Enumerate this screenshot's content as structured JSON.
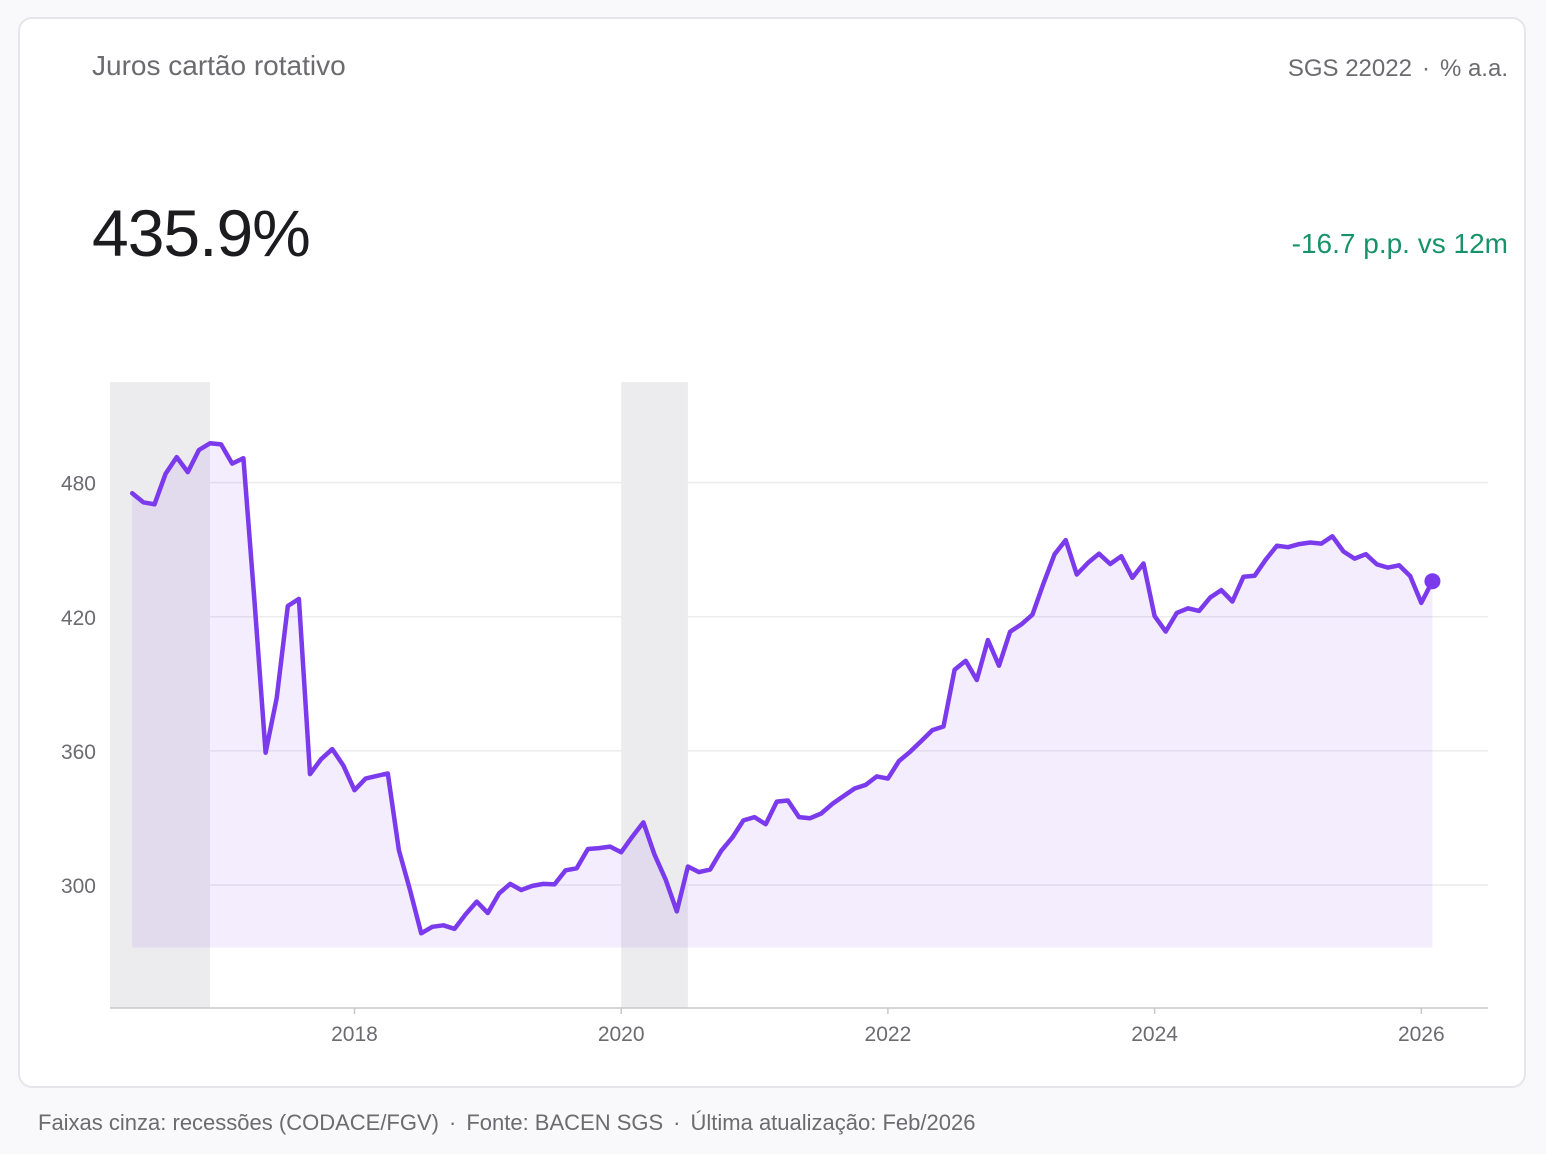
{
  "card": {
    "title": "Juros cartão rotativo",
    "series_code": "SGS 22022",
    "unit": "% a.a.",
    "current_value": "435.9%",
    "delta": "-16.7 p.p. vs 12m"
  },
  "footer": {
    "note": "Faixas cinza: recessões (CODACE/FGV)",
    "source": "Fonte: BACEN SGS",
    "updated": "Última atualização: Feb/2026"
  },
  "colors": {
    "line": "#7c3aed",
    "fill": "#f1edfc",
    "recession": "#ececee",
    "delta": "#17936a"
  },
  "chart_data": {
    "type": "line",
    "title": "Juros cartão rotativo",
    "ylabel": "% a.a.",
    "ylim": [
      245,
      525
    ],
    "xlim": [
      "2016-03",
      "2026-07"
    ],
    "y_ticks": [
      300,
      360,
      420,
      480
    ],
    "x_ticks": [
      "2018",
      "2020",
      "2022",
      "2024",
      "2026"
    ],
    "grid": true,
    "fill_baseline": 272,
    "recessions": [
      {
        "start": "2016-03",
        "end": "2016-12"
      },
      {
        "start": "2020-01",
        "end": "2020-07"
      }
    ],
    "series": [
      {
        "name": "",
        "x": [
          "2016-05",
          "2016-06",
          "2016-07",
          "2016-08",
          "2016-09",
          "2016-10",
          "2016-11",
          "2016-12",
          "2017-01",
          "2017-02",
          "2017-03",
          "2017-04",
          "2017-05",
          "2017-06",
          "2017-07",
          "2017-08",
          "2017-09",
          "2017-10",
          "2017-11",
          "2017-12",
          "2018-01",
          "2018-02",
          "2018-03",
          "2018-04",
          "2018-05",
          "2018-06",
          "2018-07",
          "2018-08",
          "2018-09",
          "2018-10",
          "2018-11",
          "2018-12",
          "2019-01",
          "2019-02",
          "2019-03",
          "2019-04",
          "2019-05",
          "2019-06",
          "2019-07",
          "2019-08",
          "2019-09",
          "2019-10",
          "2019-11",
          "2019-12",
          "2020-01",
          "2020-02",
          "2020-03",
          "2020-04",
          "2020-05",
          "2020-06",
          "2020-07",
          "2020-08",
          "2020-09",
          "2020-10",
          "2020-11",
          "2020-12",
          "2021-01",
          "2021-02",
          "2021-03",
          "2021-04",
          "2021-05",
          "2021-06",
          "2021-07",
          "2021-08",
          "2021-09",
          "2021-10",
          "2021-11",
          "2021-12",
          "2022-01",
          "2022-02",
          "2022-03",
          "2022-04",
          "2022-05",
          "2022-06",
          "2022-07",
          "2022-08",
          "2022-09",
          "2022-10",
          "2022-11",
          "2022-12",
          "2023-01",
          "2023-02",
          "2023-03",
          "2023-04",
          "2023-05",
          "2023-06",
          "2023-07",
          "2023-08",
          "2023-09",
          "2023-10",
          "2023-11",
          "2023-12",
          "2024-01",
          "2024-02",
          "2024-03",
          "2024-04",
          "2024-05",
          "2024-06",
          "2024-07",
          "2024-08",
          "2024-09",
          "2024-10",
          "2024-11",
          "2024-12",
          "2025-01",
          "2025-02",
          "2025-03",
          "2025-04",
          "2025-05",
          "2025-06",
          "2025-07",
          "2025-08",
          "2025-09",
          "2025-10",
          "2025-11",
          "2025-12",
          "2026-01",
          "2026-02"
        ],
        "values": [
          475.2,
          471.2,
          470.3,
          484,
          491.4,
          484.7,
          494.6,
          497.6,
          497.1,
          488.5,
          490.9,
          426.9,
          359.2,
          383.6,
          424.8,
          428,
          349.6,
          356.3,
          360.8,
          353.4,
          342.4,
          347.6,
          348.8,
          349.9,
          315.6,
          297.8,
          278.4,
          281.3,
          282,
          280.4,
          286.9,
          292.6,
          287.5,
          296.2,
          300.5,
          297.8,
          299.6,
          300.5,
          300.3,
          306.6,
          307.5,
          316.1,
          316.5,
          317.2,
          314.7,
          321.6,
          328,
          313.6,
          302.5,
          288.2,
          308.3,
          305.8,
          306.9,
          315.3,
          321.2,
          328.9,
          330.4,
          327.2,
          337.3,
          337.8,
          330.4,
          329.9,
          332,
          336.3,
          339.8,
          343.2,
          344.8,
          348.6,
          347.6,
          355.5,
          359.6,
          364.4,
          369.3,
          370.9,
          396.3,
          400.3,
          391.7,
          409.6,
          398.1,
          413.3,
          416.6,
          420.9,
          434.9,
          448,
          454.3,
          438.9,
          444.1,
          448.2,
          443.6,
          447.1,
          437.4,
          443.8,
          420.3,
          413.4,
          421.7,
          423.8,
          422.6,
          428.6,
          431.9,
          426.8,
          437.9,
          438.3,
          445.5,
          451.8,
          451.1,
          452.5,
          453.2,
          452.7,
          456,
          449.2,
          446,
          448,
          443.4,
          442,
          443,
          438.2,
          426.2,
          435.9
        ]
      }
    ]
  }
}
